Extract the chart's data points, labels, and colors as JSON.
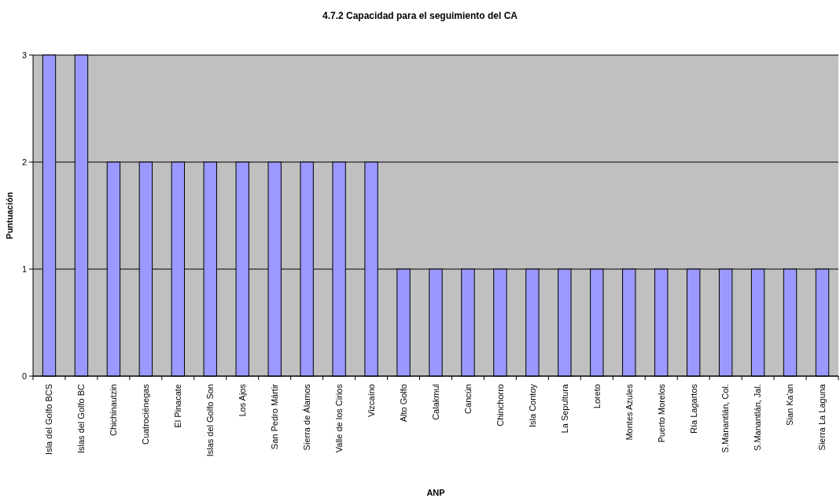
{
  "chart_data": {
    "type": "bar",
    "title": "4.7.2 Capacidad para el seguimiento del CA",
    "xlabel": "ANP",
    "ylabel": "Puntuación",
    "categories": [
      "Isla del Golfo BCS",
      "Islas del Golfo BC",
      "Chichinautzin",
      "Cuatrociénegas",
      "El Pinacate",
      "Islas del Golfo Son",
      "Los Ajos",
      "San Pedro Mártir",
      "Sierra de Álamos",
      "Valle de los Cirios",
      "Vizcaíno",
      "Alto Golfo",
      "Calakmul",
      "Cancún",
      "Chinchorro",
      "Isla Contoy",
      "La Sepultura",
      "Loreto",
      "Montes Azules",
      "Puerto Morelos",
      "Ría Lagartos",
      "S.Manantlán, Col.",
      "S.Manantlán, Jal.",
      "Sian Ka'an",
      "Sierra La Laguna"
    ],
    "values": [
      3,
      3,
      2,
      2,
      2,
      2,
      2,
      2,
      2,
      2,
      2,
      1,
      1,
      1,
      1,
      1,
      1,
      1,
      1,
      1,
      1,
      1,
      1,
      1,
      1
    ],
    "color": "#9999ff",
    "ylim": [
      0,
      3
    ],
    "yticks": [
      0,
      1,
      2,
      3
    ],
    "grid": "y"
  }
}
